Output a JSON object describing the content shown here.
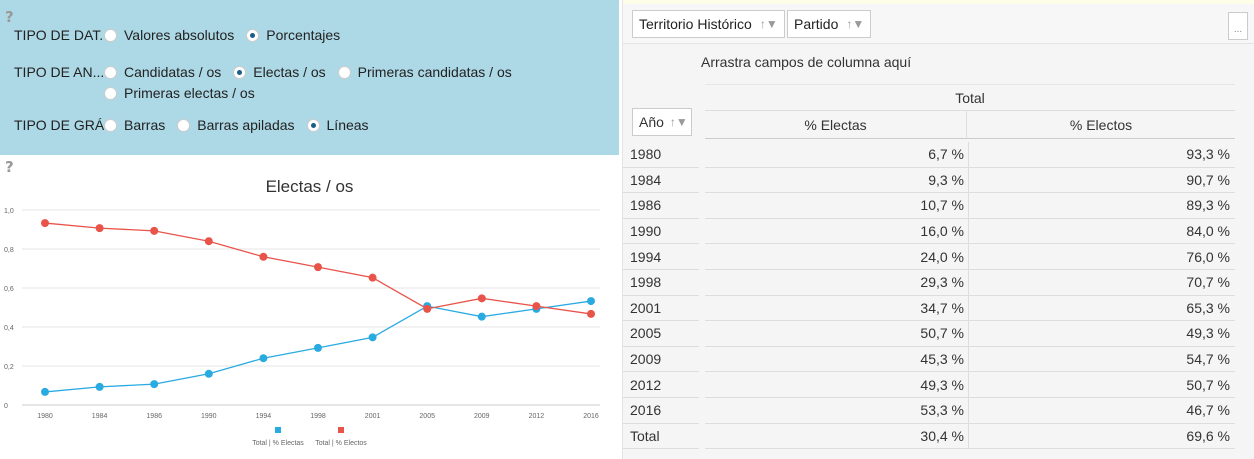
{
  "options": {
    "help": "?",
    "rows": [
      {
        "label": "TIPO DE DAT...",
        "choices": [
          {
            "label": "Valores absolutos",
            "checked": false
          },
          {
            "label": "Porcentajes",
            "checked": true
          }
        ]
      },
      {
        "label": "TIPO DE AN...",
        "choices": [
          {
            "label": "Candidatas / os",
            "checked": false
          },
          {
            "label": "Electas / os",
            "checked": true
          },
          {
            "label": "Primeras candidatas / os",
            "checked": false
          },
          {
            "label": "Primeras electas / os",
            "checked": false
          }
        ]
      },
      {
        "label": "TIPO DE GRÁ...",
        "choices": [
          {
            "label": "Barras",
            "checked": false
          },
          {
            "label": "Barras apiladas",
            "checked": false
          },
          {
            "label": "Líneas",
            "checked": true
          }
        ]
      }
    ]
  },
  "chart_help": "?",
  "chart_data": {
    "type": "line",
    "title": "Electas / os",
    "x": [
      "1980",
      "1984",
      "1986",
      "1990",
      "1994",
      "1998",
      "2001",
      "2005",
      "2009",
      "2012",
      "2016"
    ],
    "yticks": [
      "0",
      "0,2",
      "0,4",
      "0,6",
      "0,8",
      "1,0"
    ],
    "ylim": [
      0,
      1
    ],
    "grid": true,
    "legend_position": "bottom",
    "series": [
      {
        "name": "Total | % Electas",
        "color": "#29abe2",
        "values": [
          0.067,
          0.093,
          0.107,
          0.16,
          0.24,
          0.293,
          0.347,
          0.507,
          0.453,
          0.493,
          0.533
        ]
      },
      {
        "name": "Total | % Electos",
        "color": "#e8534a",
        "values": [
          0.933,
          0.907,
          0.893,
          0.84,
          0.76,
          0.707,
          0.653,
          0.493,
          0.547,
          0.507,
          0.467
        ]
      }
    ]
  },
  "pivot": {
    "filters": [
      "Territorio Histórico",
      "Partido"
    ],
    "filter_icon": "funnel-sort-icon",
    "more_label": "...",
    "column_drop": "Arrastra campos de columna aquí",
    "total_header": "Total",
    "row_field": "Año",
    "columns": [
      "% Electas",
      "% Electos"
    ],
    "rows": [
      [
        "1980",
        "6,7 %",
        "93,3 %"
      ],
      [
        "1984",
        "9,3 %",
        "90,7 %"
      ],
      [
        "1986",
        "10,7 %",
        "89,3 %"
      ],
      [
        "1990",
        "16,0 %",
        "84,0 %"
      ],
      [
        "1994",
        "24,0 %",
        "76,0 %"
      ],
      [
        "1998",
        "29,3 %",
        "70,7 %"
      ],
      [
        "2001",
        "34,7 %",
        "65,3 %"
      ],
      [
        "2005",
        "50,7 %",
        "49,3 %"
      ],
      [
        "2009",
        "45,3 %",
        "54,7 %"
      ],
      [
        "2012",
        "49,3 %",
        "50,7 %"
      ],
      [
        "2016",
        "53,3 %",
        "46,7 %"
      ],
      [
        "Total",
        "30,4 %",
        "69,6 %"
      ]
    ]
  }
}
